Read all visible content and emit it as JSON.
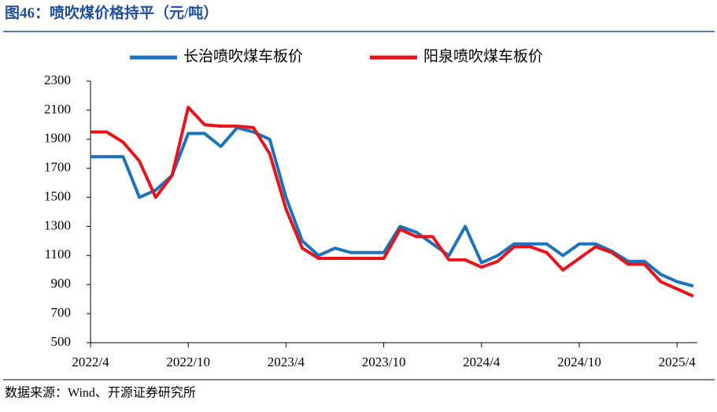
{
  "chart_data": {
    "type": "line",
    "title": "图46：喷吹煤价格持平（元/吨）",
    "source": "数据来源：Wind、开源证券研究所",
    "x": [
      "2022/4",
      null,
      null,
      null,
      null,
      null,
      "2022/10",
      null,
      null,
      null,
      null,
      null,
      "2023/4",
      null,
      null,
      null,
      null,
      null,
      "2023/10",
      null,
      null,
      null,
      null,
      null,
      "2024/4",
      null,
      null,
      null,
      null,
      null,
      "2024/10",
      null,
      null,
      null,
      null,
      null,
      "2025/4",
      null
    ],
    "series": [
      {
        "name": "长治喷吹煤车板价",
        "color": "#1a73be",
        "values": [
          1780,
          1780,
          1780,
          1500,
          1550,
          1650,
          1940,
          1940,
          1850,
          1980,
          1950,
          1900,
          1500,
          1200,
          1100,
          1150,
          1120,
          1120,
          1120,
          1300,
          1260,
          1180,
          1100,
          1300,
          1050,
          1100,
          1180,
          1180,
          1180,
          1100,
          1180,
          1180,
          1130,
          1060,
          1060,
          970,
          920,
          890
        ]
      },
      {
        "name": "阳泉喷吹煤车板价",
        "color": "#e8141a",
        "values": [
          1950,
          1950,
          1880,
          1750,
          1500,
          1650,
          2120,
          2000,
          1990,
          1990,
          1980,
          1800,
          1420,
          1150,
          1080,
          1080,
          1080,
          1080,
          1080,
          1280,
          1230,
          1230,
          1070,
          1070,
          1020,
          1060,
          1160,
          1160,
          1120,
          1000,
          1080,
          1160,
          1120,
          1040,
          1040,
          920,
          870,
          820
        ]
      }
    ],
    "ylim": [
      500,
      2300
    ],
    "yticks": [
      500,
      700,
      900,
      1100,
      1300,
      1500,
      1700,
      1900,
      2100,
      2300
    ],
    "legend": "top",
    "grid": false
  }
}
